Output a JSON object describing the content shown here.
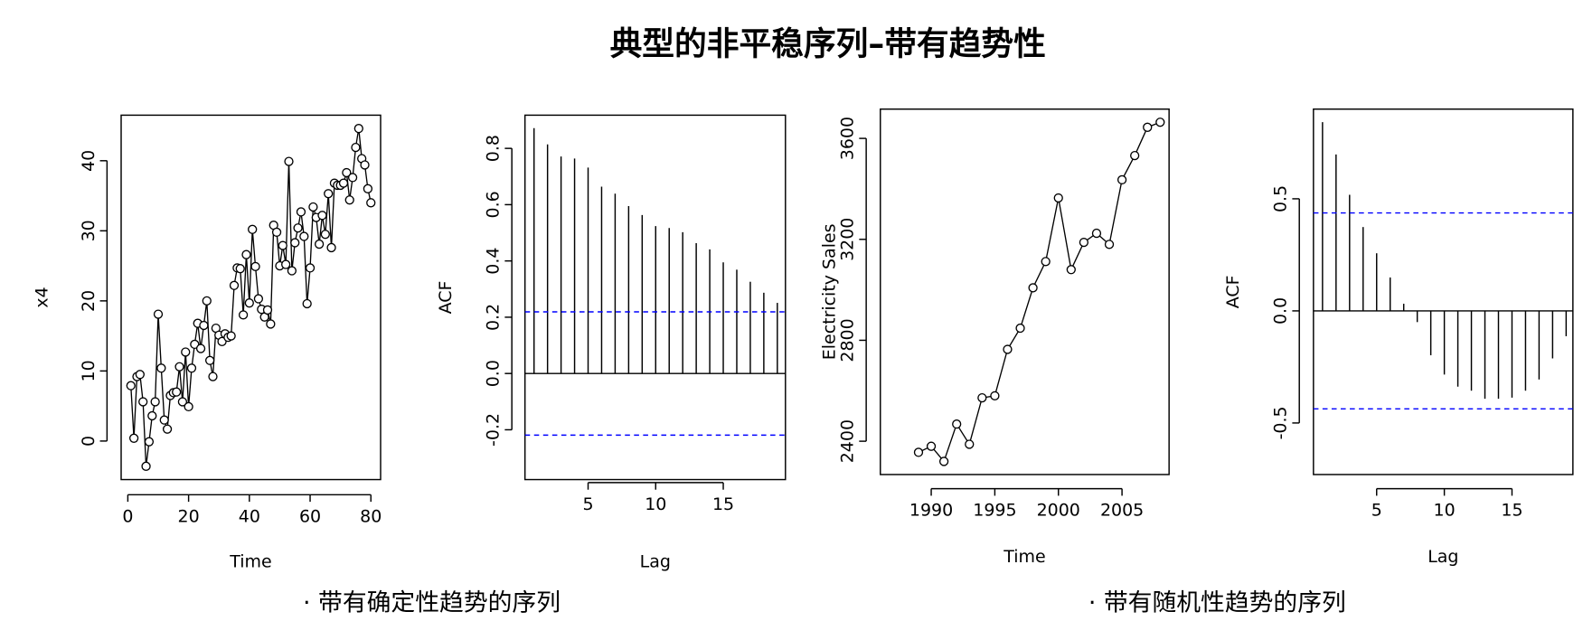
{
  "title": "典型的非平稳序列–带有趋势性",
  "captions": [
    "· 带有确定性趋势的序列",
    "· 带有随机性趋势的序列"
  ],
  "chart_data": [
    {
      "type": "line",
      "xlabel": "Time",
      "ylabel": "x4",
      "marker": "circle",
      "color": "#000000",
      "x": [
        1,
        2,
        3,
        4,
        5,
        6,
        7,
        8,
        9,
        10,
        11,
        12,
        13,
        14,
        15,
        16,
        17,
        18,
        19,
        20,
        21,
        22,
        23,
        24,
        25,
        26,
        27,
        28,
        29,
        30,
        31,
        32,
        33,
        34,
        35,
        36,
        37,
        38,
        39,
        40,
        41,
        42,
        43,
        44,
        45,
        46,
        47,
        48,
        49,
        50,
        51,
        52,
        53,
        54,
        55,
        56,
        57,
        58,
        59,
        60,
        61,
        62,
        63,
        64,
        65,
        66,
        67,
        68,
        69,
        70,
        71,
        72,
        73,
        74,
        75,
        76,
        77,
        78,
        79,
        80
      ],
      "values": [
        7.9,
        0.4,
        9.2,
        9.5,
        5.6,
        -3.6,
        -0.1,
        3.6,
        5.6,
        18.1,
        10.4,
        3.0,
        1.7,
        6.5,
        6.9,
        7.0,
        10.6,
        5.6,
        12.7,
        4.9,
        10.4,
        13.8,
        16.8,
        13.2,
        16.5,
        20.0,
        11.5,
        9.2,
        16.1,
        15.1,
        14.2,
        15.3,
        14.8,
        15.0,
        22.2,
        24.7,
        24.6,
        18.0,
        26.6,
        19.7,
        30.2,
        24.9,
        20.3,
        18.8,
        17.7,
        18.7,
        16.7,
        30.8,
        29.8,
        25.0,
        27.9,
        25.2,
        39.9,
        24.3,
        28.3,
        30.4,
        32.7,
        29.2,
        19.6,
        24.7,
        33.4,
        31.9,
        28.1,
        32.2,
        29.5,
        35.3,
        27.6,
        36.8,
        36.5,
        36.5,
        36.8,
        38.3,
        34.4,
        37.6,
        41.9,
        44.6,
        40.3,
        39.4,
        36.0,
        34.0
      ],
      "xlim": [
        -2.2,
        83.2
      ],
      "ylim": [
        -5.5,
        46.5
      ],
      "xticks": [
        0,
        20,
        40,
        60,
        80
      ],
      "yticks": [
        0,
        10,
        20,
        30,
        40
      ]
    },
    {
      "type": "bar",
      "xlabel": "Lag",
      "ylabel": "ACF",
      "color": "#000000",
      "x": [
        1,
        2,
        3,
        4,
        5,
        6,
        7,
        8,
        9,
        10,
        11,
        12,
        13,
        14,
        15,
        16,
        17,
        18,
        19
      ],
      "values": [
        0.872,
        0.814,
        0.771,
        0.764,
        0.732,
        0.664,
        0.639,
        0.595,
        0.563,
        0.524,
        0.517,
        0.502,
        0.463,
        0.441,
        0.395,
        0.369,
        0.326,
        0.287,
        0.251
      ],
      "confidence_bounds": [
        0.219,
        -0.219
      ],
      "confidence_color": "#0000ff",
      "xlim": [
        0.33,
        19.6
      ],
      "ylim": [
        -0.377,
        0.918
      ],
      "xticks": [
        5,
        10,
        15
      ],
      "yticks": [
        -0.2,
        {
          "value": 0,
          "label": "0.0"
        },
        0.2,
        0.4,
        0.6,
        0.8
      ]
    },
    {
      "type": "line",
      "xlabel": "Time",
      "ylabel": "Electricity Sales",
      "marker": "circle",
      "color": "#000000",
      "x": [
        1989,
        1990,
        1991,
        1992,
        1993,
        1994,
        1995,
        1996,
        1997,
        1998,
        1999,
        2000,
        2001,
        2002,
        2003,
        2004,
        2005,
        2006,
        2007,
        2008
      ],
      "values": [
        2356,
        2380,
        2320,
        2468,
        2388,
        2572,
        2580,
        2764,
        2848,
        3008,
        3112,
        3364,
        3080,
        3188,
        3224,
        3180,
        3436,
        3532,
        3644,
        3664
      ],
      "xlim": [
        1986.0,
        2008.7
      ],
      "ylim": [
        2268,
        3716
      ],
      "xticks": [
        1990,
        1995,
        2000,
        2005
      ],
      "yticks": [
        2400,
        2800,
        3200,
        3600
      ]
    },
    {
      "type": "bar",
      "xlabel": "Lag",
      "ylabel": "ACF",
      "color": "#000000",
      "x": [
        1,
        2,
        3,
        4,
        5,
        6,
        7,
        8,
        9,
        10,
        11,
        12,
        13,
        14,
        15,
        16,
        17,
        18,
        19
      ],
      "values": [
        0.842,
        0.698,
        0.518,
        0.374,
        0.257,
        0.149,
        0.032,
        -0.05,
        -0.198,
        -0.284,
        -0.338,
        -0.356,
        -0.392,
        -0.392,
        -0.387,
        -0.356,
        -0.306,
        -0.212,
        -0.113
      ],
      "confidence_bounds": [
        0.437,
        -0.437
      ],
      "confidence_color": "#0000ff",
      "xlim": [
        0.33,
        19.5
      ],
      "ylim": [
        -0.73,
        0.9
      ],
      "xticks": [
        5,
        10,
        15
      ],
      "yticks": [
        -0.5,
        {
          "value": 0,
          "label": "0.0"
        },
        0.5
      ]
    }
  ]
}
